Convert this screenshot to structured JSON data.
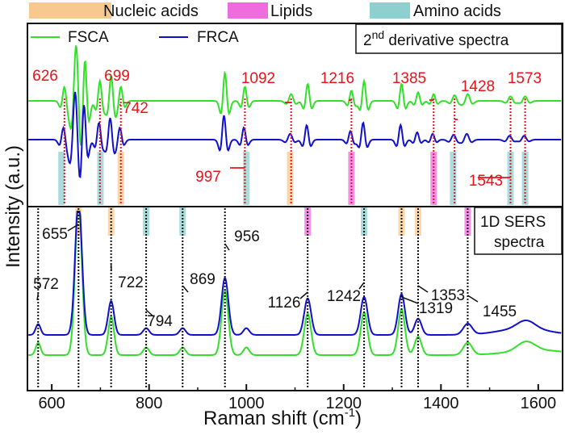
{
  "chart_data": {
    "type": "line",
    "xlabel": "Raman shift (cm",
    "xlabel_sup": "-1",
    "xlabel_end": ")",
    "ylabel": "Intensity (a.u.)",
    "xlim": [
      550,
      1650
    ],
    "xticks": [
      600,
      800,
      1000,
      1200,
      1400,
      1600
    ],
    "grid": false,
    "band_legend": [
      {
        "name": "Nucleic acids",
        "color": "#f7c98f"
      },
      {
        "name": "Lipids",
        "color": "#f06bde"
      },
      {
        "name": "Amino acids",
        "color": "#8ed0cf"
      }
    ],
    "series": [
      {
        "name": "FSCA",
        "color": "#32e02a"
      },
      {
        "name": "FRCA",
        "color": "#1010cc"
      }
    ],
    "panels": {
      "derivative": {
        "title_pre": "2",
        "title_sup": "nd",
        "title_post": " derivative spectra",
        "marker_color": "#e8131b",
        "peaks": [
          626,
          699,
          742,
          997,
          1092,
          1216,
          1385,
          1428,
          1543,
          1573
        ],
        "peak_labels": [
          "626",
          "699",
          "742",
          "997",
          "1092",
          "1216",
          "1385",
          "1428",
          "1543",
          "1573"
        ],
        "bands": [
          {
            "x": 620,
            "cls": "amino"
          },
          {
            "x": 700,
            "cls": "amino"
          },
          {
            "x": 742,
            "cls": "nucleic"
          },
          {
            "x": 1000,
            "cls": "amino"
          },
          {
            "x": 1090,
            "cls": "nucleic"
          },
          {
            "x": 1216,
            "cls": "lipid"
          },
          {
            "x": 1385,
            "cls": "lipid"
          },
          {
            "x": 1425,
            "cls": "amino"
          },
          {
            "x": 1543,
            "cls": "amino"
          },
          {
            "x": 1573,
            "cls": "amino"
          }
        ]
      },
      "sers": {
        "title_line1": "1D SERS",
        "title_line2": "spectra",
        "marker_color": "#111111",
        "peaks": [
          572,
          655,
          722,
          794,
          869,
          956,
          1126,
          1242,
          1319,
          1353,
          1455
        ],
        "peak_labels": [
          "572",
          "655",
          "722",
          "794",
          "869",
          "956",
          "1126",
          "1242",
          "1319",
          "1353",
          "1455"
        ],
        "bands": [
          {
            "x": 655,
            "cls": "nucleic"
          },
          {
            "x": 722,
            "cls": "nucleic"
          },
          {
            "x": 794,
            "cls": "amino"
          },
          {
            "x": 869,
            "cls": "amino"
          },
          {
            "x": 1126,
            "cls": "lipid"
          },
          {
            "x": 1242,
            "cls": "amino"
          },
          {
            "x": 1319,
            "cls": "nucleic"
          },
          {
            "x": 1353,
            "cls": "nucleic"
          },
          {
            "x": 1455,
            "cls": "lipid"
          }
        ]
      }
    }
  }
}
